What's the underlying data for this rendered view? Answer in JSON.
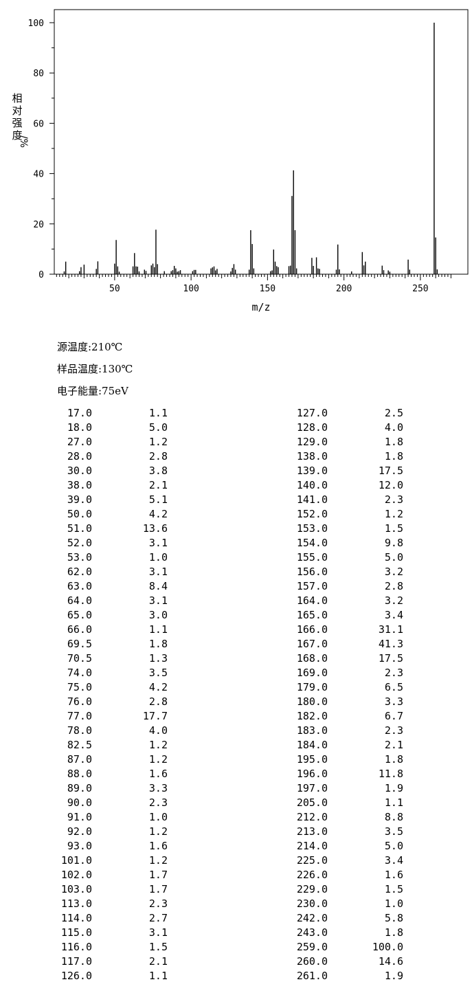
{
  "chart_data": {
    "type": "bar",
    "xlabel": "m/z",
    "ylabel": "相对强度/%",
    "xlim": [
      10,
      275
    ],
    "ylim": [
      0,
      105
    ],
    "xticks": [
      50,
      100,
      150,
      200,
      250
    ],
    "yticks": [
      0,
      20,
      40,
      60,
      80,
      100
    ],
    "grid": false,
    "peaks": [
      [
        17.0,
        1.1
      ],
      [
        18.0,
        5.0
      ],
      [
        27.0,
        1.2
      ],
      [
        28.0,
        2.8
      ],
      [
        30.0,
        3.8
      ],
      [
        38.0,
        2.1
      ],
      [
        39.0,
        5.1
      ],
      [
        50.0,
        4.2
      ],
      [
        51.0,
        13.6
      ],
      [
        52.0,
        3.1
      ],
      [
        53.0,
        1.0
      ],
      [
        62.0,
        3.1
      ],
      [
        63.0,
        8.4
      ],
      [
        64.0,
        3.1
      ],
      [
        65.0,
        3.0
      ],
      [
        66.0,
        1.1
      ],
      [
        69.5,
        1.8
      ],
      [
        70.5,
        1.3
      ],
      [
        74.0,
        3.5
      ],
      [
        75.0,
        4.2
      ],
      [
        76.0,
        2.8
      ],
      [
        77.0,
        17.7
      ],
      [
        78.0,
        4.0
      ],
      [
        82.5,
        1.2
      ],
      [
        87.0,
        1.2
      ],
      [
        88.0,
        1.6
      ],
      [
        89.0,
        3.3
      ],
      [
        90.0,
        2.3
      ],
      [
        91.0,
        1.0
      ],
      [
        92.0,
        1.2
      ],
      [
        93.0,
        1.6
      ],
      [
        101.0,
        1.2
      ],
      [
        102.0,
        1.7
      ],
      [
        103.0,
        1.7
      ],
      [
        113.0,
        2.3
      ],
      [
        114.0,
        2.7
      ],
      [
        115.0,
        3.1
      ],
      [
        116.0,
        1.5
      ],
      [
        117.0,
        2.1
      ],
      [
        126.0,
        1.1
      ],
      [
        127.0,
        2.5
      ],
      [
        128.0,
        4.0
      ],
      [
        129.0,
        1.8
      ],
      [
        138.0,
        1.8
      ],
      [
        139.0,
        17.5
      ],
      [
        140.0,
        12.0
      ],
      [
        141.0,
        2.3
      ],
      [
        152.0,
        1.2
      ],
      [
        153.0,
        1.5
      ],
      [
        154.0,
        9.8
      ],
      [
        155.0,
        5.0
      ],
      [
        156.0,
        3.2
      ],
      [
        157.0,
        2.8
      ],
      [
        164.0,
        3.2
      ],
      [
        165.0,
        3.4
      ],
      [
        166.0,
        31.1
      ],
      [
        167.0,
        41.3
      ],
      [
        168.0,
        17.5
      ],
      [
        169.0,
        2.3
      ],
      [
        179.0,
        6.5
      ],
      [
        180.0,
        3.3
      ],
      [
        182.0,
        6.7
      ],
      [
        183.0,
        2.3
      ],
      [
        184.0,
        2.1
      ],
      [
        195.0,
        1.8
      ],
      [
        196.0,
        11.8
      ],
      [
        197.0,
        1.9
      ],
      [
        205.0,
        1.1
      ],
      [
        212.0,
        8.8
      ],
      [
        213.0,
        3.5
      ],
      [
        214.0,
        5.0
      ],
      [
        225.0,
        3.4
      ],
      [
        226.0,
        1.6
      ],
      [
        229.0,
        1.5
      ],
      [
        230.0,
        1.0
      ],
      [
        242.0,
        5.8
      ],
      [
        243.0,
        1.8
      ],
      [
        259.0,
        100.0
      ],
      [
        260.0,
        14.6
      ],
      [
        261.0,
        1.9
      ]
    ]
  },
  "conditions": {
    "source_temp": "源温度:210℃",
    "sample_temp": "样品温度:130℃",
    "electron_energy": "电子能量:75eV"
  },
  "peak_table": {
    "left": [
      [
        "17.0",
        "1.1"
      ],
      [
        "18.0",
        "5.0"
      ],
      [
        "27.0",
        "1.2"
      ],
      [
        "28.0",
        "2.8"
      ],
      [
        "30.0",
        "3.8"
      ],
      [
        "38.0",
        "2.1"
      ],
      [
        "39.0",
        "5.1"
      ],
      [
        "50.0",
        "4.2"
      ],
      [
        "51.0",
        "13.6"
      ],
      [
        "52.0",
        "3.1"
      ],
      [
        "53.0",
        "1.0"
      ],
      [
        "62.0",
        "3.1"
      ],
      [
        "63.0",
        "8.4"
      ],
      [
        "64.0",
        "3.1"
      ],
      [
        "65.0",
        "3.0"
      ],
      [
        "66.0",
        "1.1"
      ],
      [
        "69.5",
        "1.8"
      ],
      [
        "70.5",
        "1.3"
      ],
      [
        "74.0",
        "3.5"
      ],
      [
        "75.0",
        "4.2"
      ],
      [
        "76.0",
        "2.8"
      ],
      [
        "77.0",
        "17.7"
      ],
      [
        "78.0",
        "4.0"
      ],
      [
        "82.5",
        "1.2"
      ],
      [
        "87.0",
        "1.2"
      ],
      [
        "88.0",
        "1.6"
      ],
      [
        "89.0",
        "3.3"
      ],
      [
        "90.0",
        "2.3"
      ],
      [
        "91.0",
        "1.0"
      ],
      [
        "92.0",
        "1.2"
      ],
      [
        "93.0",
        "1.6"
      ],
      [
        "101.0",
        "1.2"
      ],
      [
        "102.0",
        "1.7"
      ],
      [
        "103.0",
        "1.7"
      ],
      [
        "113.0",
        "2.3"
      ],
      [
        "114.0",
        "2.7"
      ],
      [
        "115.0",
        "3.1"
      ],
      [
        "116.0",
        "1.5"
      ],
      [
        "117.0",
        "2.1"
      ],
      [
        "126.0",
        "1.1"
      ]
    ],
    "right": [
      [
        "127.0",
        "2.5"
      ],
      [
        "128.0",
        "4.0"
      ],
      [
        "129.0",
        "1.8"
      ],
      [
        "138.0",
        "1.8"
      ],
      [
        "139.0",
        "17.5"
      ],
      [
        "140.0",
        "12.0"
      ],
      [
        "141.0",
        "2.3"
      ],
      [
        "152.0",
        "1.2"
      ],
      [
        "153.0",
        "1.5"
      ],
      [
        "154.0",
        "9.8"
      ],
      [
        "155.0",
        "5.0"
      ],
      [
        "156.0",
        "3.2"
      ],
      [
        "157.0",
        "2.8"
      ],
      [
        "164.0",
        "3.2"
      ],
      [
        "165.0",
        "3.4"
      ],
      [
        "166.0",
        "31.1"
      ],
      [
        "167.0",
        "41.3"
      ],
      [
        "168.0",
        "17.5"
      ],
      [
        "169.0",
        "2.3"
      ],
      [
        "179.0",
        "6.5"
      ],
      [
        "180.0",
        "3.3"
      ],
      [
        "182.0",
        "6.7"
      ],
      [
        "183.0",
        "2.3"
      ],
      [
        "184.0",
        "2.1"
      ],
      [
        "195.0",
        "1.8"
      ],
      [
        "196.0",
        "11.8"
      ],
      [
        "197.0",
        "1.9"
      ],
      [
        "205.0",
        "1.1"
      ],
      [
        "212.0",
        "8.8"
      ],
      [
        "213.0",
        "3.5"
      ],
      [
        "214.0",
        "5.0"
      ],
      [
        "225.0",
        "3.4"
      ],
      [
        "226.0",
        "1.6"
      ],
      [
        "229.0",
        "1.5"
      ],
      [
        "230.0",
        "1.0"
      ],
      [
        "242.0",
        "5.8"
      ],
      [
        "243.0",
        "1.8"
      ],
      [
        "259.0",
        "100.0"
      ],
      [
        "260.0",
        "14.6"
      ],
      [
        "261.0",
        "1.9"
      ]
    ]
  }
}
